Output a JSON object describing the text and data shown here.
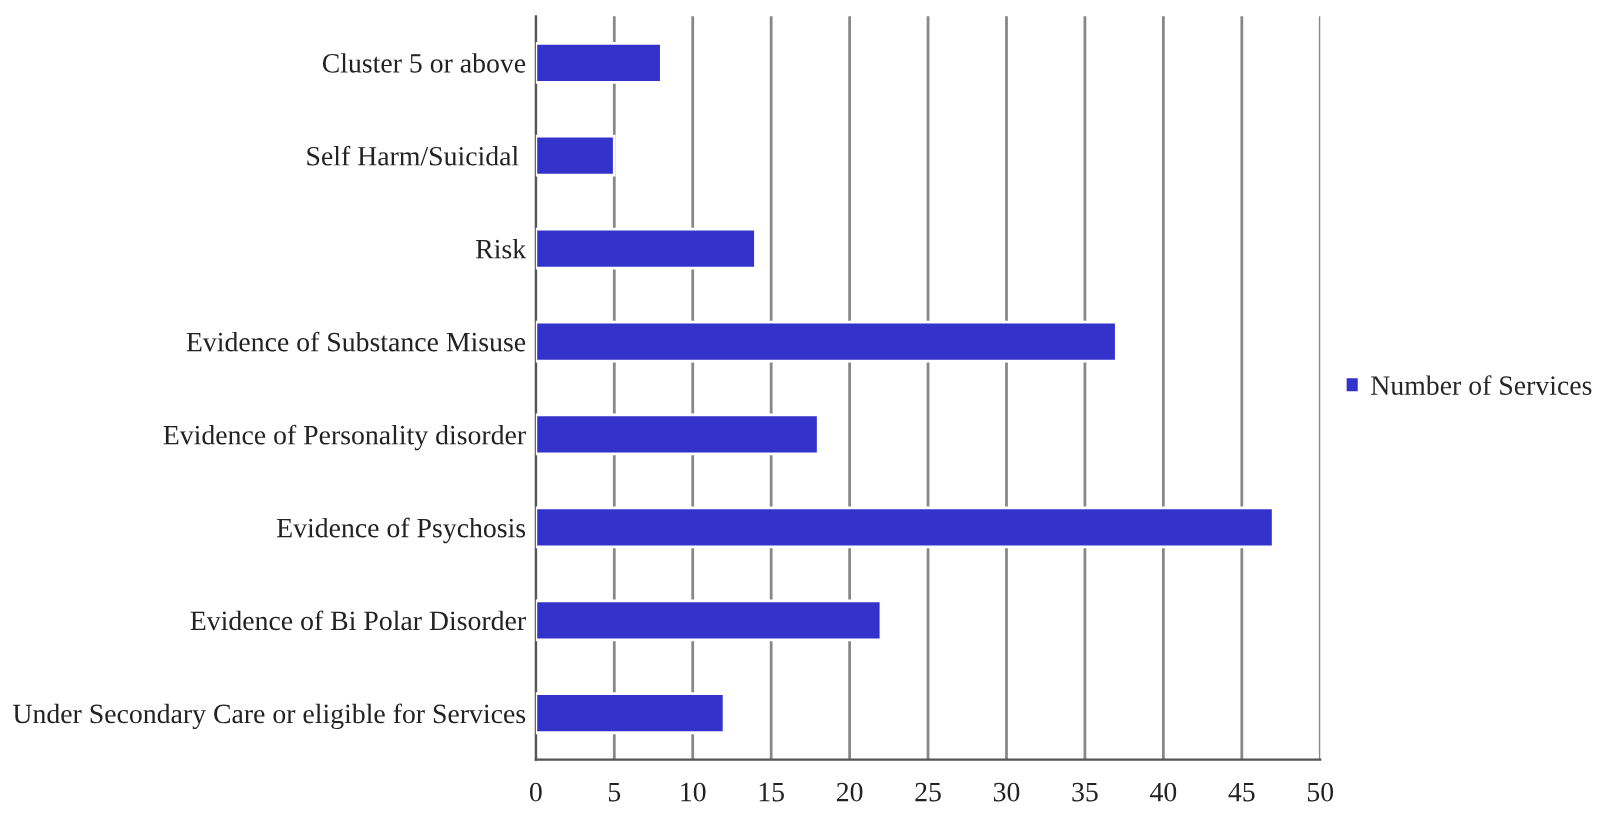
{
  "chart_data": {
    "type": "bar",
    "orientation": "horizontal",
    "categories": [
      "Cluster 5 or above",
      "Self Harm/Suicidal ",
      "Risk",
      "Evidence of Substance Misuse",
      "Evidence of Personality disorder",
      "Evidence of Psychosis",
      "Evidence of Bi Polar Disorder",
      "Under Secondary Care or eligible for Services"
    ],
    "series": [
      {
        "name": "Number of Services",
        "color": "#3333cc",
        "values": [
          8,
          5,
          14,
          37,
          18,
          47,
          22,
          12
        ]
      }
    ],
    "xlim": [
      0,
      50
    ],
    "xticks": [
      0,
      5,
      10,
      15,
      20,
      25,
      30,
      35,
      40,
      45,
      50
    ],
    "grid": "x",
    "legend": "right"
  }
}
